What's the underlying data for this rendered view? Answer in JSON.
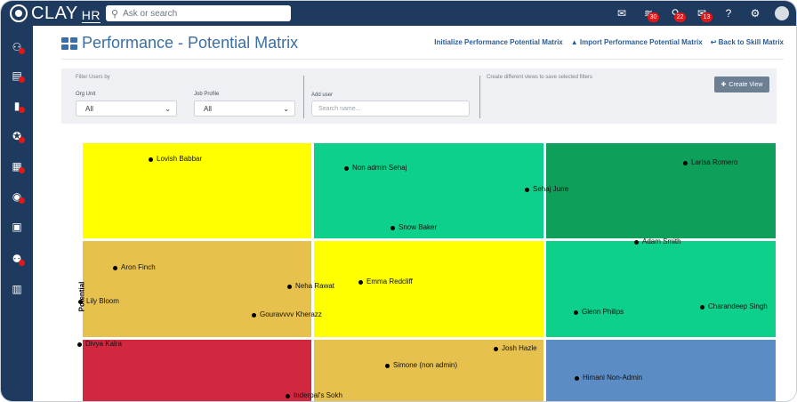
{
  "app": {
    "logo_text": "CLAY",
    "logo_sub": "HR",
    "search_placeholder": "Ask or search"
  },
  "topbar": {
    "icons": [
      {
        "name": "inbox-icon",
        "glyph": "✉",
        "badge": ""
      },
      {
        "name": "layers-icon",
        "glyph": "≋",
        "badge": "30"
      },
      {
        "name": "bell-icon",
        "glyph": "🔔",
        "badge": "22"
      },
      {
        "name": "mail-icon",
        "glyph": "✉",
        "badge": "13"
      },
      {
        "name": "help-icon",
        "glyph": "?",
        "badge": ""
      },
      {
        "name": "gear-icon",
        "glyph": "⚙",
        "badge": ""
      }
    ]
  },
  "sidebar": {
    "items": [
      {
        "name": "people-icon",
        "glyph": "⚇",
        "dot": true
      },
      {
        "name": "timesheet-icon",
        "glyph": "▤",
        "dot": true
      },
      {
        "name": "analytics-icon",
        "glyph": "▮",
        "dot": true
      },
      {
        "name": "badge-icon",
        "glyph": "✪",
        "dot": true
      },
      {
        "name": "document-icon",
        "glyph": "▦",
        "dot": true
      },
      {
        "name": "profile-icon",
        "glyph": "◉",
        "dot": true
      },
      {
        "name": "report-icon",
        "glyph": "▣",
        "dot": false
      },
      {
        "name": "team-icon",
        "glyph": "⚉",
        "dot": true
      },
      {
        "name": "clipboard-icon",
        "glyph": "▥",
        "dot": false
      }
    ]
  },
  "page": {
    "title": "Performance - Potential Matrix",
    "links": {
      "initialize": "Initialize Performance Potential Matrix",
      "import": "Import Performance Potential Matrix",
      "back": "Back to Skill Matrix"
    }
  },
  "filters": {
    "title": "Filter Users by",
    "org_unit_label": "Org Unit",
    "org_unit_value": "All",
    "job_profile_label": "Job Profile",
    "job_profile_value": "All",
    "add_user_label": "Add user",
    "add_user_placeholder": "Search name...",
    "views_note": "Create different views to save selected filters",
    "create_view": "Create View"
  },
  "matrix": {
    "y_axis_label": "Potential",
    "colors": {
      "yellow": "#ffff00",
      "light_green": "#0dd08a",
      "dark_green": "#0ea05a",
      "mustard": "#e7c14d",
      "red": "#d1283f",
      "blue": "#5b8cc4"
    },
    "cells": [
      {
        "row": 0,
        "col": 0,
        "color": "#ffff00"
      },
      {
        "row": 0,
        "col": 1,
        "color": "#0dd08a"
      },
      {
        "row": 0,
        "col": 2,
        "color": "#0ea05a"
      },
      {
        "row": 1,
        "col": 0,
        "color": "#e7c14d"
      },
      {
        "row": 1,
        "col": 1,
        "color": "#ffff00"
      },
      {
        "row": 1,
        "col": 2,
        "color": "#0dd08a"
      },
      {
        "row": 2,
        "col": 0,
        "color": "#d1283f"
      },
      {
        "row": 2,
        "col": 1,
        "color": "#e7c14d"
      },
      {
        "row": 2,
        "col": 2,
        "color": "#5b8cc4"
      }
    ],
    "people": [
      "Lovish Babbar",
      "Non admin Sehaj",
      "Sehaj June",
      "Larisa Romero",
      "Snow Baker",
      "Adam Smith",
      "Aron Finch",
      "Neha Rawat",
      "Emma Redcliff",
      "Lily Bloom",
      "Gouravvvv Kherazz",
      "Glenn Philips",
      "Charandeep Singh",
      "Divya Kalra",
      "Josh Hazle",
      "Simone (non admin)",
      "Himani Non-Admin",
      "Inderpal's Sokh"
    ]
  }
}
